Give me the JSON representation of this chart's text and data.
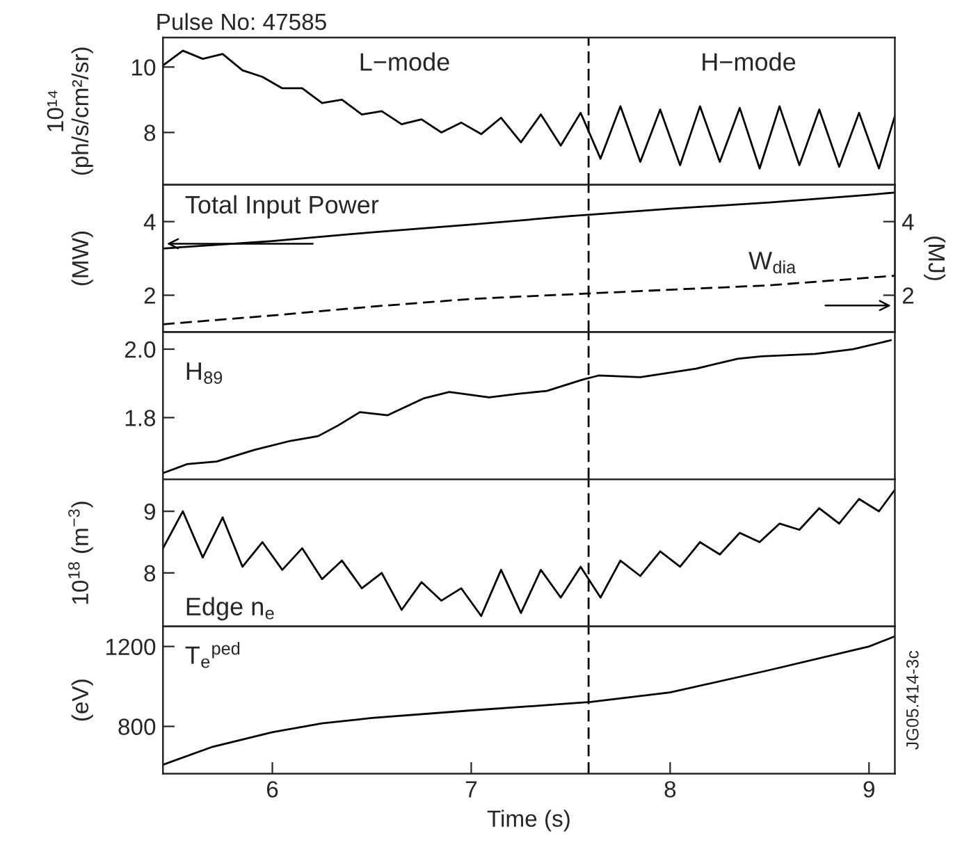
{
  "chart_data": [
    {
      "type": "line",
      "title": "Pulse No: 47585",
      "ylabel": "10¹⁴\n(ph/s/cm²/sr)",
      "xlim": [
        5.45,
        9.13
      ],
      "ylim": [
        6.4,
        10.9
      ],
      "yticks": [
        8,
        10
      ],
      "tick_labels": "y",
      "annotations": [
        "L−mode",
        "H−mode"
      ],
      "ref_lines": [
        {
          "axis": "x",
          "value": 7.59,
          "line_style": "dashed",
          "color": "#000000"
        }
      ],
      "series": [
        {
          "color": "#000000",
          "x": [
            5.45,
            5.55,
            5.65,
            5.75,
            5.85,
            5.95,
            6.05,
            6.15,
            6.25,
            6.35,
            6.45,
            6.55,
            6.65,
            6.75,
            6.85,
            6.95,
            7.05,
            7.15,
            7.25,
            7.35,
            7.45,
            7.55,
            7.65,
            7.75,
            7.85,
            7.95,
            8.05,
            8.15,
            8.25,
            8.35,
            8.45,
            8.55,
            8.65,
            8.75,
            8.85,
            8.95,
            9.05,
            9.13
          ],
          "values": [
            10.05,
            10.5,
            10.25,
            10.4,
            9.9,
            9.7,
            9.35,
            9.35,
            8.9,
            9.0,
            8.55,
            8.65,
            8.25,
            8.4,
            8.0,
            8.3,
            7.95,
            8.45,
            7.7,
            8.55,
            7.6,
            8.6,
            7.2,
            8.8,
            7.1,
            8.7,
            7.0,
            8.8,
            7.1,
            8.75,
            6.9,
            8.8,
            7.0,
            8.7,
            6.95,
            8.6,
            6.9,
            8.5
          ]
        }
      ]
    },
    {
      "type": "line",
      "ylabel": "(MW)",
      "y2label": "(MJ)",
      "xlim": [
        5.45,
        9.13
      ],
      "ylim": [
        1.0,
        5.0
      ],
      "yticks": [
        2,
        4
      ],
      "y2lim": [
        1.0,
        5.0
      ],
      "y2ticks": [
        2,
        4
      ],
      "tick_labels": "y",
      "annotations": [
        "Total Input Power",
        "W$_{dia}$"
      ],
      "ref_lines": [
        {
          "axis": "x",
          "value": 7.59,
          "line_style": "dashed",
          "color": "#000000"
        }
      ],
      "series": [
        {
          "color": "#000000",
          "line_style": "solid",
          "x": [
            5.45,
            6.0,
            6.5,
            7.0,
            7.5,
            7.6,
            8.0,
            8.5,
            9.0,
            9.13
          ],
          "values": [
            3.27,
            3.47,
            3.71,
            3.92,
            4.15,
            4.19,
            4.35,
            4.52,
            4.73,
            4.79
          ]
        },
        {
          "color": "#000000",
          "line_style": "dashed",
          "axis": "y2",
          "x": [
            5.45,
            6.0,
            6.5,
            7.0,
            7.6,
            8.0,
            8.5,
            9.13
          ],
          "values": [
            1.21,
            1.45,
            1.69,
            1.9,
            2.05,
            2.15,
            2.27,
            2.53
          ]
        }
      ]
    },
    {
      "type": "line",
      "xlim": [
        5.45,
        9.13
      ],
      "ylim": [
        1.62,
        2.05
      ],
      "yticks": [
        1.8,
        {
          "value": 2.0,
          "label": "2.0"
        }
      ],
      "tick_labels": "y",
      "annotations": [
        "H$_{89}$"
      ],
      "ref_lines": [
        {
          "axis": "x",
          "value": 7.59,
          "line_style": "dashed",
          "color": "#000000"
        }
      ],
      "series": [
        {
          "color": "#000000",
          "x": [
            5.45,
            5.57,
            5.72,
            5.91,
            6.09,
            6.23,
            6.33,
            6.44,
            6.58,
            6.76,
            6.89,
            7.09,
            7.24,
            7.38,
            7.56,
            7.64,
            7.85,
            8.13,
            8.34,
            8.46,
            8.73,
            8.92,
            9.11
          ],
          "values": [
            1.638,
            1.664,
            1.672,
            1.706,
            1.732,
            1.746,
            1.777,
            1.816,
            1.807,
            1.856,
            1.875,
            1.859,
            1.87,
            1.878,
            1.911,
            1.923,
            1.918,
            1.943,
            1.972,
            1.979,
            1.986,
            2.0,
            2.026
          ]
        }
      ]
    },
    {
      "type": "line",
      "ylabel": "10$^{18}$ (m$^{−3}$)",
      "xlim": [
        5.45,
        9.13
      ],
      "ylim": [
        7.13,
        9.52
      ],
      "yticks": [
        8,
        9
      ],
      "tick_labels": "y",
      "annotations": [
        "Edge n$_{e}$"
      ],
      "ref_lines": [
        {
          "axis": "x",
          "value": 7.59,
          "line_style": "dashed",
          "color": "#000000"
        }
      ],
      "series": [
        {
          "color": "#000000",
          "x": [
            5.45,
            5.55,
            5.65,
            5.75,
            5.85,
            5.95,
            6.05,
            6.15,
            6.25,
            6.35,
            6.45,
            6.55,
            6.65,
            6.75,
            6.85,
            6.95,
            7.05,
            7.15,
            7.25,
            7.35,
            7.45,
            7.55,
            7.65,
            7.75,
            7.85,
            7.95,
            8.05,
            8.15,
            8.25,
            8.35,
            8.45,
            8.55,
            8.65,
            8.75,
            8.85,
            8.95,
            9.05,
            9.13
          ],
          "values": [
            8.4,
            9.0,
            8.25,
            8.9,
            8.1,
            8.5,
            8.05,
            8.4,
            7.9,
            8.2,
            7.75,
            8.0,
            7.4,
            7.85,
            7.55,
            7.75,
            7.3,
            8.05,
            7.35,
            8.05,
            7.6,
            8.1,
            7.6,
            8.2,
            7.95,
            8.35,
            8.1,
            8.5,
            8.3,
            8.65,
            8.5,
            8.8,
            8.7,
            9.05,
            8.8,
            9.2,
            9.0,
            9.35
          ]
        }
      ]
    },
    {
      "type": "line",
      "xlabel": "Time (s)",
      "ylabel": "(eV)",
      "xlim": [
        5.45,
        9.13
      ],
      "xticks": [
        6,
        7,
        8,
        9
      ],
      "ylim": [
        563,
        1300
      ],
      "yticks": [
        800,
        1200
      ],
      "annotations": [
        "T$_{e}$$^{ped}$",
        "JG05.414-3c"
      ],
      "ref_lines": [
        {
          "axis": "x",
          "value": 7.59,
          "line_style": "dashed",
          "color": "#000000"
        }
      ],
      "series": [
        {
          "color": "#000000",
          "x": [
            5.45,
            5.7,
            6.0,
            6.25,
            6.5,
            7.0,
            7.5,
            7.6,
            8.0,
            8.5,
            9.0,
            9.13
          ],
          "values": [
            608,
            698,
            771,
            815,
            842,
            880,
            915,
            922,
            970,
            1082,
            1200,
            1251
          ]
        }
      ]
    }
  ]
}
